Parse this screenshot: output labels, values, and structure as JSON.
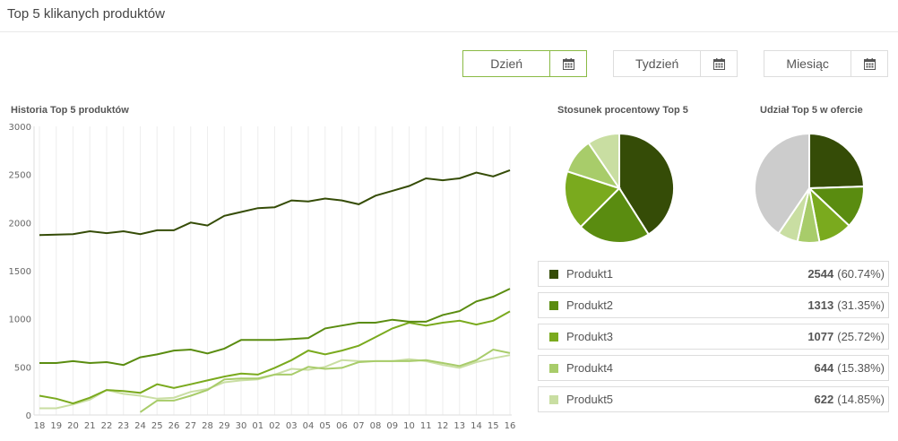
{
  "header": {
    "title": "Top 5 klikanych produktów"
  },
  "periods": [
    {
      "label": "Dzień",
      "active": true
    },
    {
      "label": "Tydzień",
      "active": false
    },
    {
      "label": "Miesiąc",
      "active": false
    }
  ],
  "colors": [
    "#354c07",
    "#5a8c10",
    "#7aaa1e",
    "#a8cc6a",
    "#c9dea2"
  ],
  "legend": [
    {
      "name": "Produkt1",
      "value": "2544",
      "pct": "(60.74%)"
    },
    {
      "name": "Produkt2",
      "value": "1313",
      "pct": "(31.35%)"
    },
    {
      "name": "Produkt3",
      "value": "1077",
      "pct": "(25.72%)"
    },
    {
      "name": "Produkt4",
      "value": "644",
      "pct": "(15.38%)"
    },
    {
      "name": "Produkt5",
      "value": "622",
      "pct": "(14.85%)"
    }
  ],
  "chart_data": [
    {
      "type": "line",
      "title": "Historia Top 5 produktów",
      "categories": [
        "18",
        "19",
        "20",
        "21",
        "22",
        "23",
        "24",
        "25",
        "26",
        "27",
        "28",
        "29",
        "30",
        "01",
        "02",
        "03",
        "04",
        "05",
        "06",
        "07",
        "08",
        "09",
        "10",
        "11",
        "12",
        "13",
        "14",
        "15",
        "16"
      ],
      "ylim": [
        0,
        3000
      ],
      "yticks": [
        0,
        500,
        1000,
        1500,
        2000,
        2500,
        3000
      ],
      "grid": "vertical",
      "series": [
        {
          "name": "Produkt1",
          "values": [
            1870,
            1875,
            1880,
            1910,
            1890,
            1910,
            1880,
            1920,
            1920,
            2000,
            1970,
            2070,
            2110,
            2150,
            2160,
            2230,
            2220,
            2250,
            2230,
            2190,
            2280,
            2330,
            2380,
            2460,
            2440,
            2460,
            2520,
            2480,
            2544
          ]
        },
        {
          "name": "Produkt2",
          "values": [
            540,
            540,
            560,
            540,
            550,
            520,
            600,
            630,
            670,
            680,
            640,
            690,
            780,
            780,
            780,
            790,
            800,
            900,
            930,
            960,
            960,
            990,
            970,
            970,
            1040,
            1080,
            1180,
            1230,
            1313
          ]
        },
        {
          "name": "Produkt3",
          "values": [
            200,
            170,
            120,
            180,
            260,
            250,
            230,
            320,
            280,
            320,
            360,
            400,
            430,
            420,
            490,
            570,
            670,
            630,
            670,
            720,
            810,
            900,
            960,
            930,
            960,
            980,
            940,
            980,
            1077
          ]
        },
        {
          "name": "Produkt4",
          "values": [
            null,
            null,
            null,
            null,
            null,
            null,
            30,
            150,
            150,
            200,
            260,
            370,
            380,
            380,
            420,
            420,
            500,
            480,
            490,
            550,
            560,
            560,
            560,
            570,
            540,
            510,
            570,
            680,
            644
          ]
        },
        {
          "name": "Produkt5",
          "values": [
            70,
            70,
            110,
            160,
            260,
            220,
            200,
            170,
            180,
            240,
            270,
            340,
            360,
            370,
            420,
            480,
            470,
            500,
            570,
            560,
            560,
            560,
            580,
            560,
            520,
            490,
            550,
            590,
            622
          ]
        }
      ]
    },
    {
      "type": "pie",
      "title": "Stosunek procentowy Top 5",
      "labels": [
        "Produkt1",
        "Produkt2",
        "Produkt3",
        "Produkt4",
        "Produkt5"
      ],
      "values": [
        41.0,
        21.5,
        17.5,
        10.5,
        9.5
      ]
    },
    {
      "type": "pie",
      "title": "Udział Top 5 w ofercie",
      "labels": [
        "Produkt1",
        "Produkt2",
        "Produkt3",
        "Produkt4",
        "Produkt5",
        ""
      ],
      "values": [
        24.5,
        12.5,
        10.0,
        6.5,
        6.0,
        40.5
      ]
    }
  ]
}
